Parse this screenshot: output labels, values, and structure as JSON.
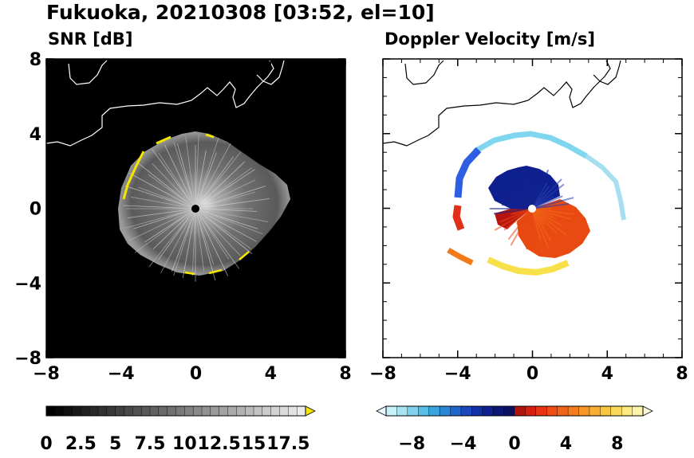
{
  "title": "Fukuoka, 20210308 [03:52, el=10]",
  "colors": {
    "snr_background": "#000000",
    "snr_ring_highlight": "#f5e600",
    "doppler_background": "#ffffff",
    "coastline": "#ffffff",
    "coastline_on_white": "#000000"
  },
  "chart_data": [
    {
      "type": "heatmap",
      "title": "SNR [dB]",
      "xlim": [
        -8,
        8
      ],
      "ylim": [
        -8,
        8
      ],
      "xticks": [
        -8,
        -4,
        0,
        4,
        8
      ],
      "yticks": [
        -8,
        -4,
        0,
        4,
        8
      ],
      "radar_site": [
        0,
        0
      ],
      "colorbar": {
        "colormap": "grayscale (black to white, yellow at max)",
        "min": 0,
        "max": 18.75,
        "extend": "max",
        "tick_values": [
          0,
          2.5,
          5,
          7.5,
          10,
          12.5,
          15,
          17.5
        ],
        "tick_labels": [
          "0",
          "2.5",
          "5",
          "7.5",
          "10",
          "12.5",
          "15",
          "17.5"
        ]
      }
    },
    {
      "type": "heatmap",
      "title": "Doppler Velocity [m/s]",
      "xlim": [
        -8,
        8
      ],
      "ylim": [
        -8,
        8
      ],
      "xticks": [
        -8,
        -4,
        0,
        4,
        8
      ],
      "yticks": [
        -8,
        -4,
        0,
        4,
        8
      ],
      "radar_site": [
        0,
        0
      ],
      "colorbar": {
        "colormap": "diverging: cyan-blue-navy (negative) to red-orange-yellow (positive)",
        "min": -10,
        "max": 10,
        "extend": "both",
        "tick_values": [
          -8,
          -4,
          0,
          4,
          8
        ],
        "tick_labels": [
          "−8",
          "−4",
          "0",
          "4",
          "8"
        ]
      }
    }
  ]
}
